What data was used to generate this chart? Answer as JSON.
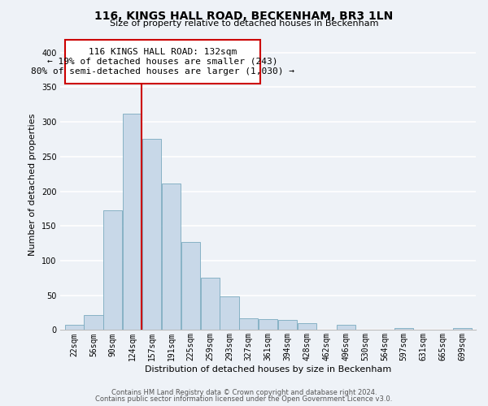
{
  "title": "116, KINGS HALL ROAD, BECKENHAM, BR3 1LN",
  "subtitle": "Size of property relative to detached houses in Beckenham",
  "xlabel": "Distribution of detached houses by size in Beckenham",
  "ylabel": "Number of detached properties",
  "bin_labels": [
    "22sqm",
    "56sqm",
    "90sqm",
    "124sqm",
    "157sqm",
    "191sqm",
    "225sqm",
    "259sqm",
    "293sqm",
    "327sqm",
    "361sqm",
    "394sqm",
    "428sqm",
    "462sqm",
    "496sqm",
    "530sqm",
    "564sqm",
    "597sqm",
    "631sqm",
    "665sqm",
    "699sqm"
  ],
  "bar_heights": [
    8,
    22,
    173,
    312,
    276,
    211,
    127,
    75,
    48,
    17,
    16,
    15,
    10,
    0,
    8,
    0,
    0,
    3,
    0,
    0,
    3
  ],
  "bar_color": "#c8d8e8",
  "bar_edge_color": "#7aaabf",
  "vline_color": "#cc0000",
  "ylim": [
    0,
    420
  ],
  "yticks": [
    0,
    50,
    100,
    150,
    200,
    250,
    300,
    350,
    400
  ],
  "annotation_line1": "116 KINGS HALL ROAD: 132sqm",
  "annotation_line2": "← 19% of detached houses are smaller (243)",
  "annotation_line3": "80% of semi-detached houses are larger (1,030) →",
  "footer_line1": "Contains HM Land Registry data © Crown copyright and database right 2024.",
  "footer_line2": "Contains public sector information licensed under the Open Government Licence v3.0.",
  "bg_color": "#eef2f7",
  "grid_color": "#ffffff",
  "box_edge_color": "#cc0000",
  "title_fontsize": 10,
  "subtitle_fontsize": 8,
  "axis_label_fontsize": 8,
  "tick_fontsize": 7,
  "annotation_fontsize": 8,
  "footer_fontsize": 6
}
